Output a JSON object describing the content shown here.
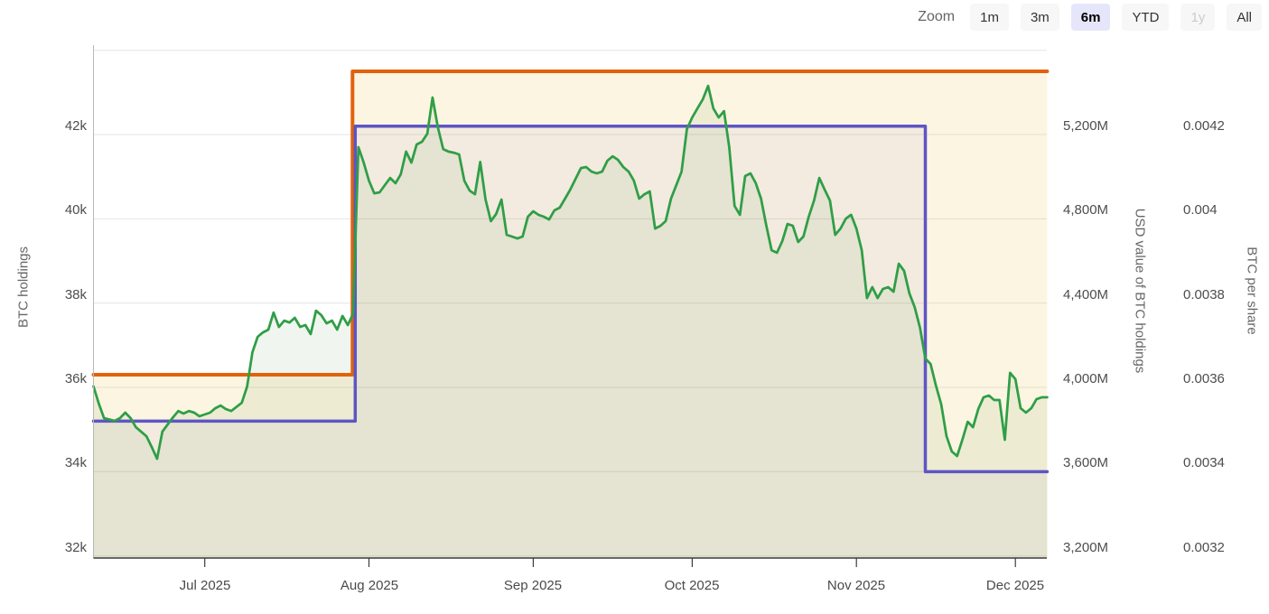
{
  "zoom_toolbar": {
    "label": "Zoom",
    "buttons": [
      {
        "label": "1m",
        "state": "normal"
      },
      {
        "label": "3m",
        "state": "normal"
      },
      {
        "label": "6m",
        "state": "selected"
      },
      {
        "label": "YTD",
        "state": "normal"
      },
      {
        "label": "1y",
        "state": "disabled"
      },
      {
        "label": "All",
        "state": "normal"
      }
    ],
    "selected_bg": "#e6e6fa"
  },
  "chart_data": {
    "type": "line",
    "title": "",
    "grid": "horizontal-on",
    "legend_position": "none",
    "x_axis": {
      "start_date": "2025-06-10",
      "end_date": "2025-12-07",
      "interval": "daily",
      "ticks": [
        {
          "day": 21,
          "label": "Jul 2025"
        },
        {
          "day": 52,
          "label": "Aug 2025"
        },
        {
          "day": 83,
          "label": "Sep 2025"
        },
        {
          "day": 113,
          "label": "Oct 2025"
        },
        {
          "day": 144,
          "label": "Nov 2025"
        },
        {
          "day": 174,
          "label": "Dec 2025"
        }
      ]
    },
    "axes": {
      "left": {
        "title": "BTC holdings",
        "tick_labels": [
          "42k",
          "40k",
          "38k",
          "36k",
          "34k",
          "32k"
        ],
        "tick_values": [
          42000,
          40000,
          38000,
          36000,
          34000,
          32000
        ],
        "ylim": [
          32000,
          44000
        ]
      },
      "right1": {
        "title": "USD value of BTC holdings",
        "tick_labels": [
          "5,200M",
          "4,800M",
          "4,400M",
          "4,000M",
          "3,600M",
          "3,200M"
        ],
        "tick_values": [
          5200,
          4800,
          4400,
          4000,
          3600,
          3200
        ],
        "ylim": [
          3200,
          5600
        ]
      },
      "right2": {
        "title": "BTC per share",
        "tick_labels": [
          "0.0042",
          "0.004",
          "0.0038",
          "0.0036",
          "0.0034",
          "0.0032"
        ],
        "tick_values": [
          0.0042,
          0.004,
          0.0038,
          0.0036,
          0.0034,
          0.0032
        ],
        "ylim": [
          0.0032,
          0.0044
        ]
      }
    },
    "series": [
      {
        "name": "BTC holdings",
        "axis": "left",
        "shape": "step",
        "color": "#e2620c",
        "line_width": 4,
        "area_fill": "rgba(232,178,30,0.135)",
        "points": [
          [
            0,
            36300
          ],
          [
            48.9,
            36300
          ],
          [
            48.9,
            43500
          ],
          [
            180,
            43500
          ]
        ]
      },
      {
        "name": "BTC per share",
        "axis": "right2",
        "shape": "step",
        "color": "#5e55c4",
        "line_width": 3.5,
        "area_fill": "rgba(95,85,200,0.06)",
        "points": [
          [
            0,
            0.00352
          ],
          [
            49.4,
            0.00352
          ],
          [
            49.4,
            0.00422
          ],
          [
            157,
            0.00422
          ],
          [
            157,
            0.0034
          ],
          [
            180,
            0.0034
          ]
        ]
      },
      {
        "name": "USD value of BTC holdings",
        "axis": "right1",
        "shape": "line",
        "color": "#2f9e47",
        "line_width": 2.75,
        "area_fill": "rgba(60,145,55,0.08)",
        "points": [
          [
            0,
            4005
          ],
          [
            1,
            3923
          ],
          [
            2,
            3854
          ],
          [
            4,
            3841
          ],
          [
            5,
            3854
          ],
          [
            6,
            3880
          ],
          [
            7,
            3854
          ],
          [
            8,
            3811
          ],
          [
            10,
            3768
          ],
          [
            11,
            3717
          ],
          [
            12,
            3661
          ],
          [
            13,
            3790
          ],
          [
            15,
            3858
          ],
          [
            16,
            3888
          ],
          [
            17,
            3876
          ],
          [
            18,
            3888
          ],
          [
            19,
            3880
          ],
          [
            20,
            3863
          ],
          [
            22,
            3880
          ],
          [
            23,
            3901
          ],
          [
            24,
            3914
          ],
          [
            25,
            3897
          ],
          [
            26,
            3888
          ],
          [
            28,
            3927
          ],
          [
            29,
            4004
          ],
          [
            30,
            4167
          ],
          [
            31,
            4240
          ],
          [
            32,
            4261
          ],
          [
            33,
            4274
          ],
          [
            34,
            4355
          ],
          [
            35,
            4287
          ],
          [
            36,
            4317
          ],
          [
            37,
            4308
          ],
          [
            38,
            4330
          ],
          [
            39,
            4287
          ],
          [
            40,
            4296
          ],
          [
            41,
            4253
          ],
          [
            42,
            4364
          ],
          [
            43,
            4343
          ],
          [
            44,
            4304
          ],
          [
            45,
            4317
          ],
          [
            46,
            4274
          ],
          [
            47,
            4339
          ],
          [
            48,
            4296
          ],
          [
            49,
            4350
          ],
          [
            50,
            5140
          ],
          [
            51,
            5067
          ],
          [
            52,
            4981
          ],
          [
            53,
            4921
          ],
          [
            54,
            4926
          ],
          [
            55,
            4960
          ],
          [
            56,
            4994
          ],
          [
            57,
            4969
          ],
          [
            58,
            5011
          ],
          [
            59,
            5119
          ],
          [
            60,
            5067
          ],
          [
            61,
            5153
          ],
          [
            62,
            5166
          ],
          [
            63,
            5204
          ],
          [
            64,
            5376
          ],
          [
            65,
            5234
          ],
          [
            66,
            5131
          ],
          [
            67,
            5119
          ],
          [
            68,
            5114
          ],
          [
            69,
            5106
          ],
          [
            70,
            4981
          ],
          [
            71,
            4934
          ],
          [
            72,
            4917
          ],
          [
            73,
            5070
          ],
          [
            74,
            4891
          ],
          [
            75,
            4789
          ],
          [
            76,
            4823
          ],
          [
            77,
            4891
          ],
          [
            78,
            4724
          ],
          [
            79,
            4716
          ],
          [
            80,
            4707
          ],
          [
            81,
            4716
          ],
          [
            82,
            4810
          ],
          [
            83,
            4836
          ],
          [
            84,
            4819
          ],
          [
            85,
            4810
          ],
          [
            86,
            4797
          ],
          [
            87,
            4840
          ],
          [
            88,
            4853
          ],
          [
            89,
            4896
          ],
          [
            90,
            4939
          ],
          [
            91,
            4990
          ],
          [
            92,
            5041
          ],
          [
            93,
            5046
          ],
          [
            94,
            5024
          ],
          [
            95,
            5016
          ],
          [
            96,
            5024
          ],
          [
            97,
            5076
          ],
          [
            98,
            5097
          ],
          [
            99,
            5080
          ],
          [
            100,
            5046
          ],
          [
            101,
            5024
          ],
          [
            102,
            4981
          ],
          [
            103,
            4896
          ],
          [
            104,
            4917
          ],
          [
            105,
            4930
          ],
          [
            106,
            4754
          ],
          [
            107,
            4767
          ],
          [
            108,
            4789
          ],
          [
            109,
            4896
          ],
          [
            110,
            4960
          ],
          [
            111,
            5024
          ],
          [
            112,
            5226
          ],
          [
            113,
            5281
          ],
          [
            114,
            5324
          ],
          [
            115,
            5367
          ],
          [
            116,
            5431
          ],
          [
            117,
            5324
          ],
          [
            118,
            5281
          ],
          [
            119,
            5311
          ],
          [
            120,
            5140
          ],
          [
            121,
            4861
          ],
          [
            122,
            4819
          ],
          [
            123,
            5003
          ],
          [
            124,
            5016
          ],
          [
            125,
            4969
          ],
          [
            126,
            4896
          ],
          [
            127,
            4767
          ],
          [
            128,
            4651
          ],
          [
            129,
            4639
          ],
          [
            130,
            4694
          ],
          [
            131,
            4776
          ],
          [
            132,
            4767
          ],
          [
            133,
            4690
          ],
          [
            134,
            4716
          ],
          [
            135,
            4810
          ],
          [
            136,
            4887
          ],
          [
            137,
            4994
          ],
          [
            138,
            4939
          ],
          [
            139,
            4887
          ],
          [
            140,
            4724
          ],
          [
            141,
            4754
          ],
          [
            142,
            4801
          ],
          [
            143,
            4819
          ],
          [
            144,
            4754
          ],
          [
            145,
            4651
          ],
          [
            146,
            4424
          ],
          [
            147,
            4476
          ],
          [
            148,
            4424
          ],
          [
            149,
            4467
          ],
          [
            150,
            4476
          ],
          [
            151,
            4454
          ],
          [
            152,
            4587
          ],
          [
            153,
            4553
          ],
          [
            154,
            4446
          ],
          [
            155,
            4381
          ],
          [
            156,
            4283
          ],
          [
            157,
            4137
          ],
          [
            158,
            4111
          ],
          [
            159,
            4009
          ],
          [
            160,
            3919
          ],
          [
            161,
            3769
          ],
          [
            162,
            3696
          ],
          [
            163,
            3674
          ],
          [
            164,
            3751
          ],
          [
            165,
            3837
          ],
          [
            166,
            3811
          ],
          [
            167,
            3897
          ],
          [
            168,
            3953
          ],
          [
            169,
            3961
          ],
          [
            170,
            3940
          ],
          [
            171,
            3940
          ],
          [
            172,
            3751
          ],
          [
            173,
            4069
          ],
          [
            174,
            4039
          ],
          [
            175,
            3901
          ],
          [
            176,
            3880
          ],
          [
            177,
            3901
          ],
          [
            178,
            3944
          ],
          [
            179,
            3953
          ],
          [
            180,
            3953
          ]
        ]
      }
    ],
    "colors": {
      "gridline": "#e5e5e5",
      "axis_line": "#3c3c3c",
      "left_axis_line": "#b8b8b8",
      "tick_label": "#4d4d4d",
      "axis_title": "#666666"
    }
  }
}
